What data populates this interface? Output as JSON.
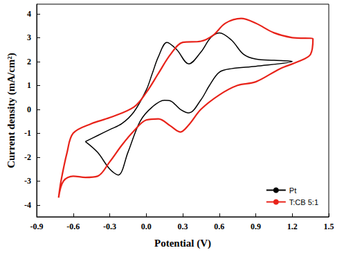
{
  "chart_data": {
    "type": "line",
    "x_label": "Potential (V)",
    "y_label": "Current density (mA/cm²)",
    "xlim": [
      -0.9,
      1.5
    ],
    "xticks": [
      -0.9,
      -0.6,
      -0.3,
      {
        "value": 0,
        "label": "0.0"
      },
      0.3,
      0.6,
      0.9,
      1.2,
      1.5
    ],
    "ylim": [
      -4.5,
      4.4
    ],
    "yticks": [
      -4,
      -3,
      -2,
      -1,
      0,
      1,
      2,
      3,
      4
    ],
    "grid": false,
    "legend": "lower right",
    "series": [
      {
        "name": "Pt",
        "color": "#000000",
        "x": [
          -0.5,
          -0.4,
          -0.3,
          -0.2,
          -0.1,
          0.0,
          0.05,
          0.1,
          0.17,
          0.25,
          0.35,
          0.45,
          0.53,
          0.6,
          0.7,
          0.8,
          0.9,
          1.05,
          1.2,
          0.9,
          0.7,
          0.6,
          0.52,
          0.45,
          0.35,
          0.28,
          0.2,
          0.15,
          0.05,
          -0.05,
          -0.15,
          -0.23,
          -0.3,
          -0.4,
          -0.5
        ],
        "values": [
          -1.35,
          -1.1,
          -0.85,
          -0.6,
          -0.1,
          0.8,
          1.5,
          2.2,
          2.8,
          2.5,
          1.9,
          2.4,
          3.0,
          3.2,
          2.9,
          2.3,
          2.1,
          2.05,
          2.0,
          1.8,
          1.7,
          1.55,
          1.0,
          0.4,
          -0.15,
          0.0,
          0.35,
          0.38,
          0.1,
          -0.5,
          -1.8,
          -2.75,
          -2.5,
          -1.8,
          -1.35
        ]
      },
      {
        "name": "T:CB 5:1",
        "color": "#e8231a",
        "x": [
          -0.72,
          -0.7,
          -0.65,
          -0.6,
          -0.45,
          -0.3,
          -0.1,
          0.0,
          0.1,
          0.2,
          0.3,
          0.45,
          0.55,
          0.65,
          0.78,
          0.9,
          1.05,
          1.2,
          1.37,
          1.35,
          1.25,
          1.1,
          0.9,
          0.75,
          0.6,
          0.45,
          0.35,
          0.28,
          0.2,
          0.1,
          0.0,
          -0.1,
          -0.2,
          -0.3,
          -0.4,
          -0.5,
          -0.6,
          -0.68,
          -0.72
        ],
        "values": [
          -3.7,
          -3.0,
          -1.8,
          -1.0,
          -0.6,
          -0.35,
          0.1,
          0.7,
          1.5,
          2.3,
          2.8,
          2.85,
          3.1,
          3.6,
          3.8,
          3.6,
          3.2,
          3.0,
          2.95,
          2.3,
          2.0,
          1.7,
          1.15,
          1.0,
          0.6,
          0.0,
          -0.65,
          -0.95,
          -0.7,
          -0.4,
          -0.45,
          -0.9,
          -1.5,
          -2.2,
          -2.8,
          -2.85,
          -2.8,
          -3.0,
          -3.7
        ]
      }
    ]
  }
}
